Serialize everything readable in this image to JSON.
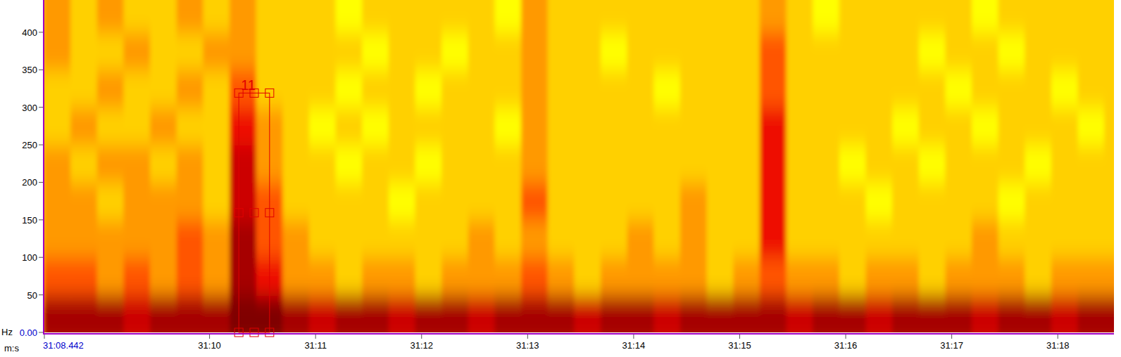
{
  "chart_data": {
    "type": "spectrogram",
    "y_label": "Hz",
    "x_label": "m:s",
    "xlim": [
      68.442,
      78.53
    ],
    "ylim": [
      0,
      443
    ],
    "xticks": [
      {
        "value": 68.442,
        "label": "31:08.442"
      },
      {
        "value": 70,
        "label": "31:10"
      },
      {
        "value": 71,
        "label": "31:11"
      },
      {
        "value": 72,
        "label": "31:12"
      },
      {
        "value": 73,
        "label": "31:13"
      },
      {
        "value": 74,
        "label": "31:14"
      },
      {
        "value": 75,
        "label": "31:15"
      },
      {
        "value": 76,
        "label": "31:16"
      },
      {
        "value": 77,
        "label": "31:17"
      },
      {
        "value": 78,
        "label": "31:18"
      }
    ],
    "yticks": [
      {
        "value": 0,
        "label": "0.00"
      },
      50,
      100,
      150,
      200,
      250,
      300,
      350,
      400
    ],
    "x_edges": [
      68.442,
      68.692,
      68.942,
      69.192,
      69.442,
      69.692,
      69.942,
      70.192,
      70.442,
      70.692,
      70.942,
      71.192,
      71.442,
      71.692,
      71.942,
      72.192,
      72.442,
      72.692,
      72.942,
      73.192,
      73.442,
      73.692,
      73.942,
      74.192,
      74.442,
      74.692,
      74.942,
      75.192,
      75.442,
      75.692,
      75.942,
      76.192,
      76.442,
      76.692,
      76.942,
      77.192,
      77.442,
      77.692,
      77.942,
      78.192,
      78.442,
      78.692
    ],
    "y_edges": [
      0,
      50,
      100,
      150,
      200,
      250,
      300,
      350,
      400,
      450
    ],
    "zlim": [
      0,
      10
    ],
    "cells": [
      [
        9,
        9,
        9,
        8,
        9,
        9,
        9,
        10,
        10,
        9,
        8,
        9,
        9,
        8,
        9,
        9,
        8,
        9,
        9,
        9,
        8,
        9,
        9,
        8,
        9,
        9,
        9,
        9,
        8,
        9,
        9,
        8,
        9,
        9,
        9,
        8,
        9,
        9,
        8,
        9,
        9
      ],
      [
        6,
        6,
        5,
        6,
        5,
        6,
        5,
        9,
        7,
        5,
        5,
        4,
        5,
        5,
        4,
        5,
        5,
        5,
        6,
        5,
        4,
        5,
        5,
        5,
        5,
        4,
        5,
        6,
        5,
        5,
        4,
        5,
        5,
        4,
        5,
        5,
        5,
        4,
        5,
        5,
        5
      ],
      [
        5,
        5,
        5,
        5,
        5,
        6,
        5,
        9,
        6,
        5,
        4,
        4,
        4,
        4,
        4,
        4,
        5,
        4,
        5,
        4,
        4,
        4,
        5,
        4,
        5,
        4,
        4,
        7,
        4,
        4,
        4,
        4,
        4,
        4,
        4,
        5,
        4,
        4,
        4,
        4,
        4
      ],
      [
        5,
        5,
        4,
        5,
        5,
        5,
        4,
        8,
        6,
        4,
        4,
        4,
        4,
        3,
        4,
        4,
        4,
        4,
        6,
        4,
        4,
        4,
        4,
        4,
        5,
        4,
        4,
        7,
        4,
        4,
        4,
        3,
        4,
        4,
        4,
        4,
        3,
        4,
        4,
        4,
        4
      ],
      [
        5,
        4,
        5,
        5,
        4,
        5,
        4,
        8,
        5,
        4,
        4,
        3,
        4,
        4,
        3,
        4,
        4,
        4,
        5,
        4,
        4,
        4,
        4,
        4,
        4,
        4,
        4,
        7,
        4,
        4,
        3,
        4,
        4,
        3,
        4,
        4,
        4,
        3,
        4,
        4,
        4
      ],
      [
        4,
        5,
        4,
        4,
        5,
        4,
        4,
        7,
        5,
        4,
        3,
        4,
        3,
        4,
        4,
        4,
        4,
        3,
        5,
        4,
        4,
        4,
        4,
        4,
        4,
        4,
        4,
        7,
        4,
        4,
        4,
        4,
        3,
        4,
        4,
        3,
        4,
        4,
        4,
        3,
        4
      ],
      [
        4,
        4,
        5,
        4,
        4,
        5,
        4,
        6,
        4,
        4,
        4,
        3,
        4,
        4,
        3,
        4,
        4,
        4,
        5,
        4,
        4,
        4,
        4,
        3,
        4,
        4,
        4,
        6,
        4,
        4,
        4,
        4,
        4,
        4,
        3,
        4,
        4,
        4,
        3,
        4,
        4
      ],
      [
        5,
        4,
        4,
        5,
        4,
        4,
        5,
        5,
        4,
        4,
        4,
        4,
        3,
        4,
        4,
        3,
        4,
        4,
        5,
        4,
        4,
        3,
        4,
        4,
        4,
        4,
        4,
        6,
        4,
        4,
        4,
        4,
        4,
        3,
        4,
        4,
        3,
        4,
        4,
        4,
        4
      ],
      [
        5,
        4,
        5,
        4,
        4,
        5,
        4,
        5,
        4,
        4,
        4,
        3,
        4,
        4,
        4,
        4,
        4,
        3,
        5,
        4,
        4,
        4,
        4,
        4,
        4,
        4,
        4,
        5,
        4,
        3,
        4,
        4,
        4,
        4,
        4,
        3,
        4,
        4,
        4,
        4,
        4
      ]
    ],
    "annotations": [
      {
        "text": "11",
        "x0": 70.276,
        "x1": 70.566,
        "y0": 0,
        "y1": 319
      }
    ]
  }
}
